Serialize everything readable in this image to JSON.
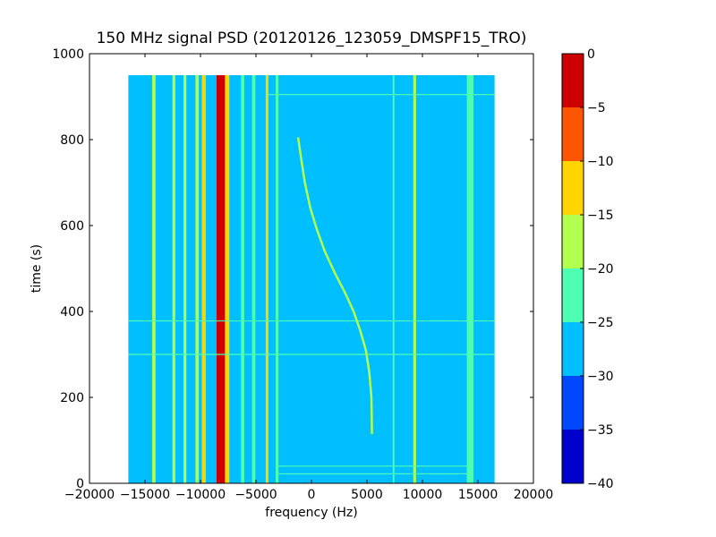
{
  "chart_data": {
    "type": "heatmap",
    "title": "150 MHz signal PSD (20120126_123059_DMSPF15_TRO)",
    "xlabel": "frequency (Hz)",
    "ylabel": "time (s)",
    "xlim": [
      -20000,
      20000
    ],
    "ylim": [
      0,
      1000
    ],
    "xticks": [
      -20000,
      -15000,
      -10000,
      -5000,
      0,
      5000,
      10000,
      15000,
      20000
    ],
    "xtick_labels": [
      "−20000",
      "−15000",
      "−10000",
      "−5000",
      "0",
      "5000",
      "10000",
      "15000",
      "20000"
    ],
    "yticks": [
      0,
      200,
      400,
      600,
      800,
      1000
    ],
    "ytick_labels": [
      "0",
      "200",
      "400",
      "600",
      "800",
      "1000"
    ],
    "data_extent": {
      "x": [
        -16500,
        16500
      ],
      "y": [
        0,
        950
      ]
    },
    "background_level_db": -27.5,
    "colorbar": {
      "levels": [
        -40,
        -35,
        -30,
        -25,
        -20,
        -15,
        -10,
        -5,
        0
      ],
      "tick_labels": [
        "−40",
        "−35",
        "−30",
        "−25",
        "−20",
        "−15",
        "−10",
        "−5",
        "0"
      ],
      "colors": [
        "#0000cc",
        "#0048ff",
        "#00bfff",
        "#4dffb2",
        "#b2ff4d",
        "#ffd500",
        "#ff5500",
        "#cc0000"
      ]
    },
    "features": [
      {
        "kind": "vertical_band",
        "x": -8100,
        "width": 900,
        "y": [
          0,
          950
        ],
        "level_db": -5
      },
      {
        "kind": "vertical_band",
        "x": -7600,
        "width": 400,
        "y": [
          0,
          950
        ],
        "level_db": -12
      },
      {
        "kind": "vertical_band",
        "x": -9700,
        "width": 350,
        "y": [
          0,
          950
        ],
        "level_db": -12
      },
      {
        "kind": "vertical_band",
        "x": -10300,
        "width": 300,
        "y": [
          0,
          950
        ],
        "level_db": -17
      },
      {
        "kind": "vertical_band",
        "x": -11400,
        "width": 250,
        "y": [
          0,
          950
        ],
        "level_db": -17
      },
      {
        "kind": "vertical_band",
        "x": -12400,
        "width": 250,
        "y": [
          0,
          950
        ],
        "level_db": -17
      },
      {
        "kind": "vertical_band",
        "x": -14200,
        "width": 300,
        "y": [
          0,
          950
        ],
        "level_db": -17
      },
      {
        "kind": "vertical_band",
        "x": -4000,
        "width": 250,
        "y": [
          0,
          950
        ],
        "level_db": -12
      },
      {
        "kind": "vertical_band",
        "x": -5200,
        "width": 300,
        "y": [
          0,
          950
        ],
        "level_db": -22
      },
      {
        "kind": "vertical_band",
        "x": -6200,
        "width": 300,
        "y": [
          0,
          950
        ],
        "level_db": -22
      },
      {
        "kind": "vertical_band",
        "x": -3100,
        "width": 250,
        "y": [
          0,
          950
        ],
        "level_db": -22
      },
      {
        "kind": "vertical_band",
        "x": 9300,
        "width": 250,
        "y": [
          0,
          950
        ],
        "level_db": -17
      },
      {
        "kind": "vertical_band",
        "x": 7400,
        "width": 150,
        "y": [
          0,
          950
        ],
        "level_db": -22
      },
      {
        "kind": "vertical_band",
        "x": 14300,
        "width": 600,
        "y": [
          0,
          950
        ],
        "level_db": -22
      },
      {
        "kind": "horizontal_line",
        "y": 378,
        "x": [
          -16500,
          16500
        ],
        "level_db": -22
      },
      {
        "kind": "horizontal_line",
        "y": 300,
        "x": [
          -16500,
          16500
        ],
        "level_db": -22
      },
      {
        "kind": "horizontal_line",
        "y": 905,
        "x": [
          -4000,
          16500
        ],
        "level_db": -22
      },
      {
        "kind": "horizontal_line",
        "y": 40,
        "x": [
          -3000,
          14500
        ],
        "level_db": -22
      },
      {
        "kind": "horizontal_line",
        "y": 22,
        "x": [
          -3000,
          14500
        ],
        "level_db": -22
      }
    ],
    "doppler_curve": {
      "level_db": -17,
      "x": [
        -1200,
        -950,
        -600,
        -100,
        500,
        1200,
        2100,
        3000,
        3800,
        4400,
        4900,
        5200,
        5400,
        5450
      ],
      "y": [
        805,
        760,
        700,
        640,
        590,
        540,
        490,
        445,
        400,
        355,
        310,
        260,
        200,
        115
      ]
    }
  }
}
